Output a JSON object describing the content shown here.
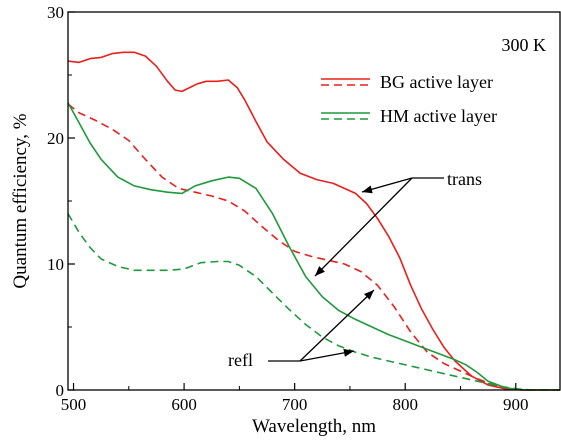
{
  "chart_data": {
    "type": "line",
    "xlabel": "Wavelength, nm",
    "ylabel": "Quantum efficiency, %",
    "xlim": [
      495,
      940
    ],
    "ylim": [
      0,
      30
    ],
    "xticks": [
      500,
      600,
      700,
      800,
      900
    ],
    "yticks": [
      0,
      10,
      20,
      30
    ],
    "grid": false,
    "annotation_temperature": "300 K",
    "legend": {
      "placement": "top-right",
      "entries": [
        {
          "label": "BG active layer",
          "color": "#e8201c",
          "dash": "solid"
        },
        {
          "label": "HM active layer",
          "color": "#1e9a3c",
          "dash": "solid"
        }
      ]
    },
    "annotations": [
      {
        "text": "trans"
      },
      {
        "text": "refl"
      }
    ],
    "series": [
      {
        "color": "#e8201c",
        "dash": "solid",
        "x": [
          495,
          505,
          515,
          525,
          535,
          545,
          555,
          565,
          575,
          585,
          592,
          598,
          605,
          612,
          620,
          630,
          640,
          648,
          655,
          665,
          675,
          690,
          705,
          720,
          735,
          745,
          755,
          765,
          775,
          785,
          795,
          805,
          815,
          825,
          835,
          845,
          860,
          875,
          890,
          905,
          920,
          940
        ],
        "y": [
          26.1,
          26.0,
          26.3,
          26.4,
          26.7,
          26.8,
          26.8,
          26.5,
          25.7,
          24.5,
          23.8,
          23.7,
          24.0,
          24.3,
          24.5,
          24.5,
          24.6,
          24.0,
          23.0,
          21.3,
          19.7,
          18.3,
          17.2,
          16.7,
          16.4,
          16.0,
          15.6,
          14.8,
          13.6,
          12.2,
          10.5,
          8.3,
          6.4,
          4.8,
          3.4,
          2.3,
          1.1,
          0.4,
          0.1,
          0.0,
          0.0,
          0.0
        ]
      },
      {
        "color": "#e8201c",
        "dash": "dashed",
        "x": [
          495,
          505,
          520,
          535,
          550,
          565,
          580,
          595,
          610,
          625,
          640,
          655,
          670,
          685,
          700,
          715,
          730,
          745,
          760,
          775,
          790,
          805,
          820,
          835,
          850,
          865,
          880,
          895,
          910,
          940
        ],
        "y": [
          22.7,
          22.0,
          21.4,
          20.7,
          19.8,
          18.3,
          16.9,
          16.0,
          15.7,
          15.4,
          15.0,
          14.2,
          13.0,
          11.9,
          11.0,
          10.6,
          10.3,
          10.0,
          9.4,
          8.3,
          6.6,
          4.6,
          3.0,
          2.1,
          1.5,
          0.9,
          0.4,
          0.1,
          0.0,
          0.0
        ]
      },
      {
        "color": "#1e9a3c",
        "dash": "solid",
        "x": [
          495,
          505,
          515,
          525,
          540,
          555,
          570,
          585,
          598,
          610,
          625,
          640,
          650,
          665,
          680,
          695,
          710,
          725,
          740,
          755,
          770,
          785,
          800,
          815,
          830,
          845,
          855,
          865,
          875,
          890,
          905,
          940
        ],
        "y": [
          22.8,
          21.2,
          19.6,
          18.3,
          16.9,
          16.2,
          15.9,
          15.7,
          15.6,
          16.2,
          16.6,
          16.9,
          16.8,
          16.0,
          14.0,
          11.4,
          9.0,
          7.4,
          6.3,
          5.6,
          5.0,
          4.4,
          3.9,
          3.4,
          2.9,
          2.4,
          2.0,
          1.4,
          0.7,
          0.2,
          0.0,
          0.0
        ]
      },
      {
        "color": "#1e9a3c",
        "dash": "dashed",
        "x": [
          495,
          505,
          515,
          525,
          540,
          555,
          570,
          585,
          600,
          615,
          630,
          640,
          650,
          665,
          680,
          695,
          710,
          725,
          740,
          755,
          770,
          790,
          810,
          830,
          850,
          870,
          885,
          900,
          915,
          940
        ],
        "y": [
          14.0,
          12.5,
          11.3,
          10.4,
          9.8,
          9.5,
          9.5,
          9.5,
          9.6,
          10.1,
          10.2,
          10.2,
          9.9,
          9.0,
          7.7,
          6.4,
          5.2,
          4.2,
          3.5,
          3.0,
          2.6,
          2.2,
          1.8,
          1.4,
          1.0,
          0.6,
          0.3,
          0.1,
          0.0,
          0.0
        ]
      }
    ]
  }
}
